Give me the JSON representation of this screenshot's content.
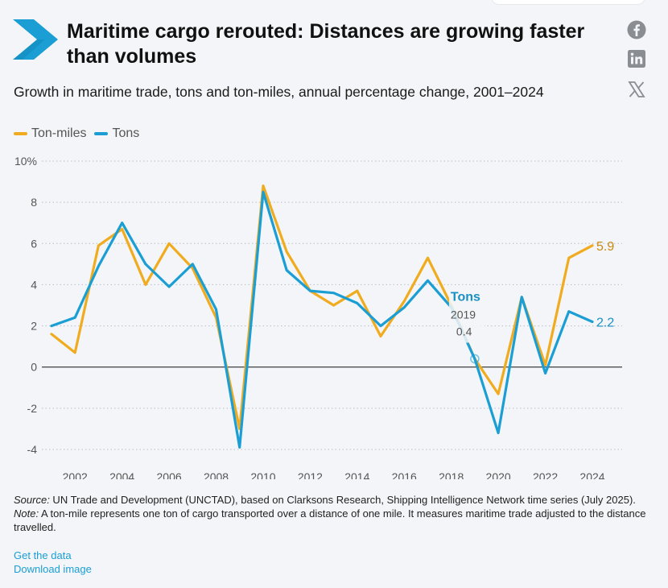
{
  "header": {
    "title": "Maritime cargo rerouted: Distances are growing faster than volumes",
    "subtitle": "Growth in maritime trade, tons and ton-miles, annual percentage change, 2001–2024"
  },
  "social": {
    "icons": [
      "facebook-icon",
      "linkedin-icon",
      "x-icon"
    ]
  },
  "colors": {
    "ton_miles": "#f0ac1e",
    "tons": "#1a9ed4",
    "brand": "#1a9ed4"
  },
  "chart_data": {
    "type": "line",
    "title": "",
    "xlabel": "",
    "ylabel": "",
    "x": [
      2001,
      2002,
      2003,
      2004,
      2005,
      2006,
      2007,
      2008,
      2009,
      2010,
      2011,
      2012,
      2013,
      2014,
      2015,
      2016,
      2017,
      2018,
      2019,
      2020,
      2021,
      2022,
      2023,
      2024
    ],
    "x_ticks": [
      "2002",
      "2004",
      "2006",
      "2008",
      "2010",
      "2012",
      "2014",
      "2016",
      "2018",
      "2020",
      "2022",
      "2024"
    ],
    "y_ticks": [
      "10%",
      "8",
      "6",
      "4",
      "2",
      "0",
      "-2",
      "-4"
    ],
    "ylim": [
      -4,
      10
    ],
    "grid": "horizontal dotted",
    "legend_position": "top-left",
    "series": [
      {
        "name": "Ton-miles",
        "color": "#f0ac1e",
        "values": [
          1.6,
          0.7,
          5.9,
          6.7,
          4.0,
          6.0,
          4.8,
          2.4,
          -3.0,
          8.8,
          5.6,
          3.7,
          3.0,
          3.7,
          1.5,
          3.2,
          5.3,
          3.0,
          0.4,
          -1.3,
          3.4,
          0.1,
          5.3,
          5.9
        ]
      },
      {
        "name": "Tons",
        "color": "#1a9ed4",
        "values": [
          2.0,
          2.4,
          4.9,
          7.0,
          5.0,
          3.9,
          5.0,
          2.8,
          -3.9,
          8.5,
          4.7,
          3.7,
          3.6,
          3.1,
          2.0,
          2.9,
          4.2,
          2.9,
          0.4,
          -3.2,
          3.4,
          -0.3,
          2.7,
          2.2
        ]
      }
    ],
    "end_labels": {
      "ton_miles": "5.9",
      "tons": "2.2"
    },
    "annotation": {
      "series_label": "Tons",
      "year": "2019",
      "value": "0.4"
    }
  },
  "footer": {
    "source_label": "Source:",
    "source_text": " UN Trade and Development (UNCTAD), based on Clarksons Research, Shipping Intelligence Network time series (July 2025).",
    "note_label": "Note:",
    "note_text": " A ton-mile represents one ton of cargo transported over a distance of one mile. It measures maritime trade adjusted to the distance travelled.",
    "get_data": "Get the data",
    "download": "Download image"
  }
}
